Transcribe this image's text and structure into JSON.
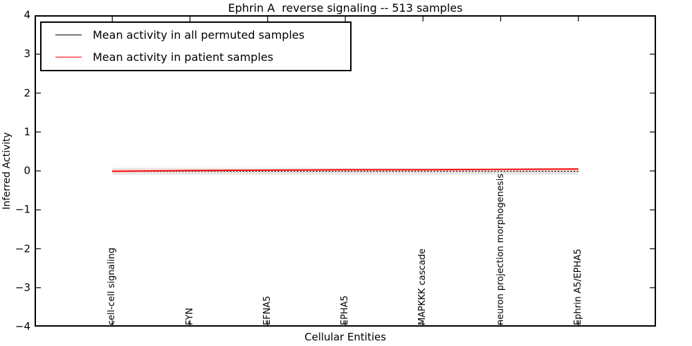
{
  "chart_data": {
    "type": "line",
    "title": "Ephrin A  reverse signaling -- 513 samples",
    "xlabel": "Cellular Entities",
    "ylabel": "Inferred Activity",
    "categories": [
      "cell-cell signaling",
      "FYN",
      "EFNA5",
      "EPHA5",
      "MAPKKK cascade",
      "neuron projection morphogenesis",
      "Ephrin A5/EPHA5"
    ],
    "series": [
      {
        "name": "Mean activity in all permuted samples",
        "color": "#000000",
        "line_style": "dotted_in_plot_solid_in_legend",
        "values": [
          -0.01,
          -0.01,
          -0.01,
          -0.01,
          -0.01,
          -0.01,
          -0.01
        ]
      },
      {
        "name": "Mean activity in patient samples",
        "color": "#ff0000",
        "line_style": "solid",
        "values": [
          -0.01,
          0.01,
          0.02,
          0.03,
          0.03,
          0.04,
          0.05
        ]
      }
    ],
    "bands": [
      {
        "name": "permuted-samples-std-band",
        "color": "#e8e8e8",
        "upper": 0.08,
        "lower": -0.1
      },
      {
        "name": "patient-samples-std-band",
        "color": "#f3d8d8",
        "upper": 0.05,
        "lower": -0.03
      }
    ],
    "xlim": [
      0,
      8
    ],
    "ylim": [
      -4,
      4
    ],
    "ytick_values": [
      4,
      3,
      2,
      1,
      0,
      -1,
      -2,
      -3,
      -4
    ],
    "ytick_labels": [
      "4",
      "3",
      "2",
      "1",
      "0",
      "−1",
      "−2",
      "−3",
      "−4"
    ],
    "grid": false,
    "legend_position": "upper left"
  }
}
